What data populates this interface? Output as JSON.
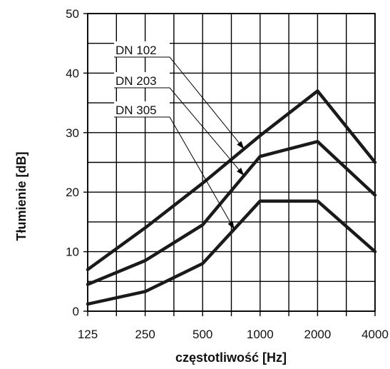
{
  "chart_data": {
    "type": "line",
    "xlabel": "częstotliwość [Hz]",
    "ylabel": "Tłumienie [dB]",
    "categories": [
      "125",
      "250",
      "500",
      "1000",
      "2000",
      "4000"
    ],
    "ylim": [
      0,
      50
    ],
    "yticks": [
      "0",
      "10",
      "20",
      "30",
      "40",
      "50"
    ],
    "grid": true,
    "series": [
      {
        "name": "DN 102",
        "values": [
          7,
          14,
          21.5,
          29.5,
          37,
          25
        ]
      },
      {
        "name": "DN 203",
        "values": [
          4.5,
          8.5,
          14.5,
          26,
          28.5,
          19.5
        ]
      },
      {
        "name": "DN 305",
        "values": [
          1.2,
          3.3,
          8,
          18.5,
          18.5,
          10
        ]
      }
    ]
  }
}
